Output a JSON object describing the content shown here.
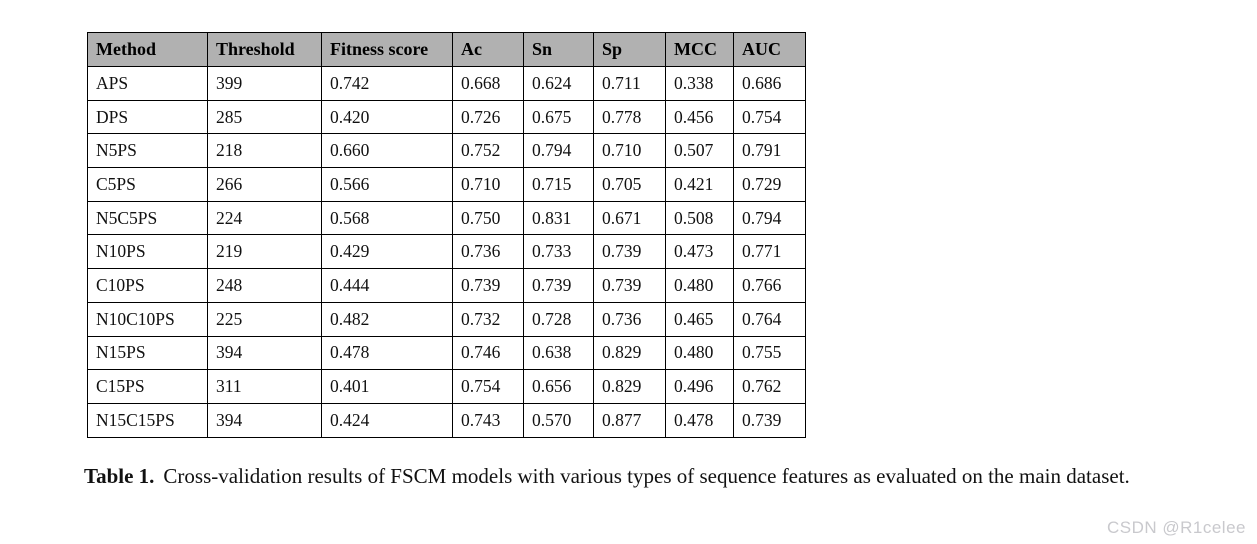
{
  "table": {
    "headers": [
      "Method",
      "Threshold",
      "Fitness score",
      "Ac",
      "Sn",
      "Sp",
      "MCC",
      "AUC"
    ],
    "rows": [
      [
        "APS",
        "399",
        "0.742",
        "0.668",
        "0.624",
        "0.711",
        "0.338",
        "0.686"
      ],
      [
        "DPS",
        "285",
        "0.420",
        "0.726",
        "0.675",
        "0.778",
        "0.456",
        "0.754"
      ],
      [
        "N5PS",
        "218",
        "0.660",
        "0.752",
        "0.794",
        "0.710",
        "0.507",
        "0.791"
      ],
      [
        "C5PS",
        "266",
        "0.566",
        "0.710",
        "0.715",
        "0.705",
        "0.421",
        "0.729"
      ],
      [
        "N5C5PS",
        "224",
        "0.568",
        "0.750",
        "0.831",
        "0.671",
        "0.508",
        "0.794"
      ],
      [
        "N10PS",
        "219",
        "0.429",
        "0.736",
        "0.733",
        "0.739",
        "0.473",
        "0.771"
      ],
      [
        "C10PS",
        "248",
        "0.444",
        "0.739",
        "0.739",
        "0.739",
        "0.480",
        "0.766"
      ],
      [
        "N10C10PS",
        "225",
        "0.482",
        "0.732",
        "0.728",
        "0.736",
        "0.465",
        "0.764"
      ],
      [
        "N15PS",
        "394",
        "0.478",
        "0.746",
        "0.638",
        "0.829",
        "0.480",
        "0.755"
      ],
      [
        "C15PS",
        "311",
        "0.401",
        "0.754",
        "0.656",
        "0.829",
        "0.496",
        "0.762"
      ],
      [
        "N15C15PS",
        "394",
        "0.424",
        "0.743",
        "0.570",
        "0.877",
        "0.478",
        "0.739"
      ]
    ]
  },
  "caption": {
    "label": "Table 1.",
    "text": "Cross-validation results of FSCM models with various types of sequence features as evaluated on the main dataset."
  },
  "watermark": "CSDN @R1celee",
  "colors": {
    "header_bg": "#b1b1b1",
    "border": "#000000",
    "watermark_text": "#c9c9cd"
  }
}
